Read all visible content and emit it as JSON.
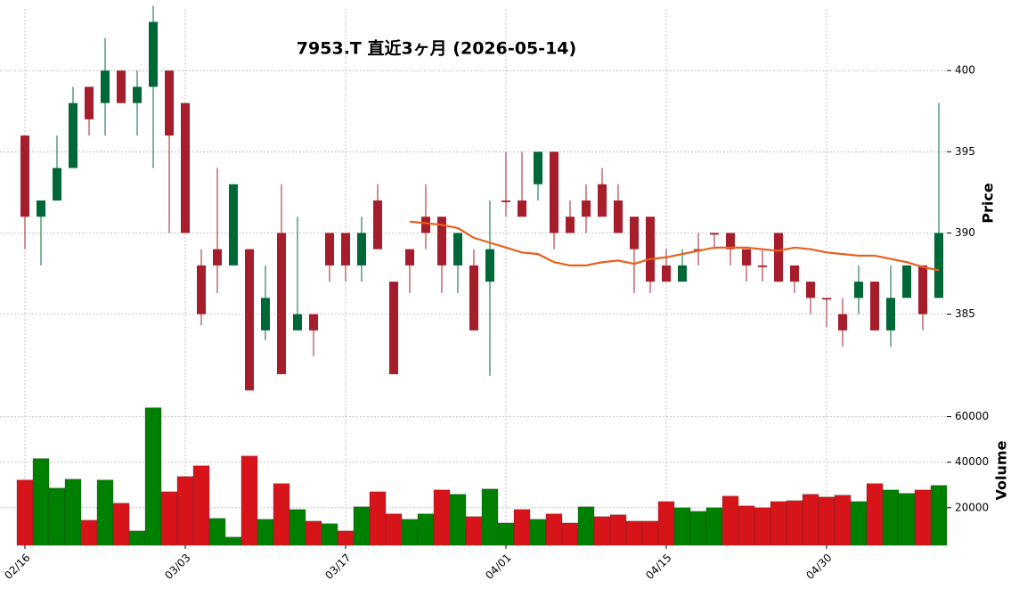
{
  "chart_data": [
    {
      "type": "candlestick",
      "title": "7953.T 直近3ヶ月 (2026-05-14)",
      "ylabel": "Price",
      "up_color": "#006837",
      "down_color": "#a61d2b",
      "grid": true,
      "ylim": [
        380.2,
        403.8
      ],
      "yticks": [
        385,
        390,
        395,
        400
      ],
      "open": [
        396,
        391,
        392,
        394,
        399,
        398,
        400,
        398,
        399,
        400,
        398,
        388,
        389,
        388,
        389,
        384,
        390,
        384,
        385,
        390,
        390,
        388,
        392,
        387,
        389,
        391,
        391,
        388,
        388,
        387,
        392,
        392,
        393,
        395,
        391,
        392,
        393,
        392,
        391,
        391,
        388,
        387,
        389,
        390,
        390,
        389,
        388,
        390,
        388,
        387,
        386,
        385,
        386,
        387,
        384,
        386,
        388,
        386
      ],
      "high": [
        396,
        392,
        396,
        399,
        399,
        402,
        400,
        400,
        404,
        400,
        398,
        389,
        394,
        393,
        389,
        388,
        393,
        391,
        385,
        390,
        390,
        391,
        393,
        387,
        389,
        393,
        391,
        390,
        389,
        392,
        395,
        395,
        395,
        395,
        392,
        393,
        394,
        393,
        391,
        391,
        389,
        389,
        390,
        390,
        390,
        389,
        389,
        390,
        388,
        387,
        386,
        386,
        388,
        387,
        388,
        388,
        388,
        398
      ],
      "low": [
        389,
        388,
        392,
        394,
        396,
        396,
        398,
        396,
        394,
        390,
        390,
        384.3,
        386.3,
        388,
        380.3,
        383.4,
        381.3,
        384,
        382.4,
        387,
        387,
        387,
        389,
        381.3,
        386.3,
        389,
        386.3,
        386.3,
        384,
        381.2,
        391,
        391,
        392,
        389,
        390,
        390,
        391,
        390,
        386.3,
        386.3,
        387,
        387,
        388,
        389,
        388,
        387,
        387,
        387,
        386.3,
        385,
        384.2,
        383,
        385,
        384,
        383,
        386,
        384,
        386
      ],
      "close": [
        391,
        392,
        394,
        398,
        397,
        400,
        398,
        399,
        403,
        396,
        390,
        385,
        388,
        393,
        380.3,
        386,
        381.3,
        385,
        384,
        388,
        388,
        390,
        389,
        381.3,
        388,
        390,
        388,
        390,
        384,
        389,
        391.9,
        391,
        395,
        390,
        390,
        391,
        391,
        390,
        389,
        387,
        387,
        388,
        388.9,
        389.9,
        389,
        388,
        387.9,
        387,
        387,
        386,
        385.9,
        384,
        387,
        384,
        386,
        388,
        385,
        390
      ],
      "ma": {
        "color": "#e8601c",
        "values": [
          null,
          null,
          null,
          null,
          null,
          null,
          null,
          null,
          null,
          null,
          null,
          null,
          null,
          null,
          null,
          null,
          null,
          null,
          null,
          null,
          null,
          null,
          null,
          null,
          390.7,
          390.6,
          390.5,
          390.3,
          389.7,
          389.4,
          389.1,
          388.8,
          388.7,
          388.2,
          388.0,
          388.0,
          388.2,
          388.3,
          388.1,
          388.4,
          388.5,
          388.7,
          388.9,
          389.1,
          389.1,
          389.1,
          389.0,
          388.9,
          389.1,
          389.0,
          388.8,
          388.7,
          388.6,
          388.6,
          388.4,
          388.2,
          387.9,
          387.7
        ]
      }
    },
    {
      "type": "bar",
      "ylabel": "Volume",
      "grid": true,
      "categories": [
        "02/16",
        null,
        null,
        null,
        null,
        null,
        null,
        null,
        null,
        null,
        "03/03",
        null,
        null,
        null,
        null,
        null,
        null,
        null,
        null,
        null,
        "03/17",
        null,
        null,
        null,
        null,
        null,
        null,
        null,
        null,
        null,
        "04/01",
        null,
        null,
        null,
        null,
        null,
        null,
        null,
        null,
        null,
        "04/15",
        null,
        null,
        null,
        null,
        null,
        null,
        null,
        null,
        null,
        "04/30",
        null,
        null,
        null,
        null,
        null,
        null,
        null
      ],
      "ylim": [
        3500,
        70000
      ],
      "yticks": [
        20000,
        40000,
        60000
      ],
      "values": [
        32200,
        41600,
        28600,
        32500,
        14500,
        32200,
        22000,
        9800,
        63900,
        27000,
        33700,
        38400,
        15300,
        7100,
        42700,
        14900,
        30600,
        19200,
        14100,
        13000,
        9800,
        20400,
        27000,
        17300,
        14900,
        17300,
        27800,
        25900,
        16100,
        28200,
        13300,
        19200,
        14900,
        17300,
        13300,
        20400,
        16100,
        16900,
        14100,
        14100,
        22700,
        20000,
        18400,
        20000,
        25100,
        20800,
        20000,
        22700,
        23100,
        25900,
        24700,
        25500,
        22700,
        30600,
        27800,
        26300,
        27800,
        29800
      ],
      "colors": [
        "#d7141a",
        "#008000",
        "#008000",
        "#008000",
        "#d7141a",
        "#008000",
        "#d7141a",
        "#008000",
        "#008000",
        "#d7141a",
        "#d7141a",
        "#d7141a",
        "#008000",
        "#008000",
        "#d7141a",
        "#008000",
        "#d7141a",
        "#008000",
        "#d7141a",
        "#008000",
        "#d7141a",
        "#008000",
        "#d7141a",
        "#d7141a",
        "#008000",
        "#008000",
        "#d7141a",
        "#008000",
        "#d7141a",
        "#008000",
        "#008000",
        "#d7141a",
        "#008000",
        "#d7141a",
        "#d7141a",
        "#008000",
        "#d7141a",
        "#d7141a",
        "#d7141a",
        "#d7141a",
        "#d7141a",
        "#008000",
        "#008000",
        "#008000",
        "#d7141a",
        "#d7141a",
        "#d7141a",
        "#d7141a",
        "#d7141a",
        "#d7141a",
        "#d7141a",
        "#d7141a",
        "#008000",
        "#d7141a",
        "#008000",
        "#008000",
        "#d7141a",
        "#008000"
      ]
    }
  ]
}
